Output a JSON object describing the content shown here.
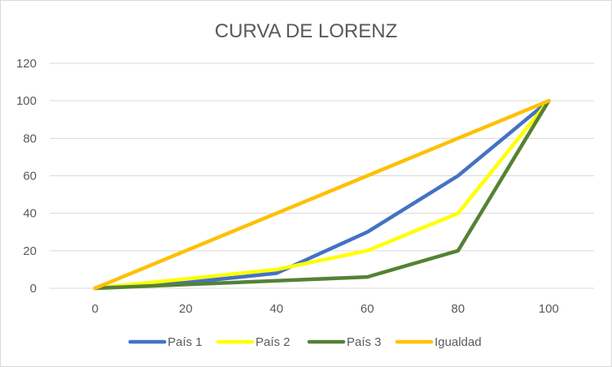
{
  "chart_data": {
    "type": "line",
    "title": "CURVA DE LORENZ",
    "xlabel": "",
    "ylabel": "",
    "x": [
      0,
      20,
      40,
      60,
      80,
      100
    ],
    "x_ticks": [
      "0",
      "20",
      "40",
      "60",
      "80",
      "100"
    ],
    "y_ticks": [
      "0",
      "20",
      "40",
      "60",
      "80",
      "100",
      "120"
    ],
    "xlim": [
      -10,
      110
    ],
    "ylim": [
      0,
      120
    ],
    "grid": "horizontal",
    "legend_position": "bottom",
    "series": [
      {
        "name": "País 1",
        "color": "#4472c4",
        "x": [
          0,
          20,
          40,
          60,
          80,
          100
        ],
        "values": [
          0,
          3,
          8,
          30,
          60,
          100
        ]
      },
      {
        "name": "País 2",
        "color": "#ffff00",
        "x": [
          0,
          20,
          40,
          60,
          80,
          100
        ],
        "values": [
          0,
          5,
          10,
          20,
          40,
          100
        ]
      },
      {
        "name": "País 3",
        "color": "#548235",
        "x": [
          0,
          20,
          40,
          60,
          80,
          100
        ],
        "values": [
          0,
          2,
          4,
          6,
          20,
          100
        ]
      },
      {
        "name": "Igualdad",
        "color": "#ffc000",
        "x": [
          0,
          20,
          40,
          60,
          80,
          100
        ],
        "values": [
          0,
          20,
          40,
          60,
          80,
          100
        ]
      }
    ]
  }
}
